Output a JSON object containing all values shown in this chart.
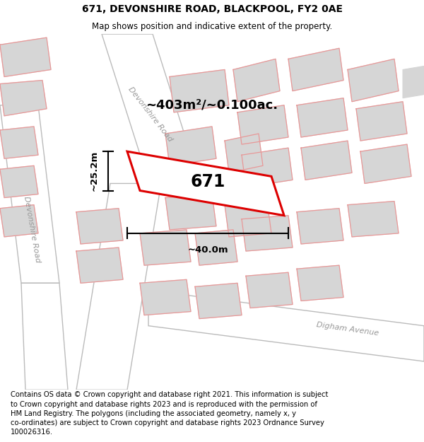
{
  "title": "671, DEVONSHIRE ROAD, BLACKPOOL, FY2 0AE",
  "subtitle": "Map shows position and indicative extent of the property.",
  "footer": "Contains OS data © Crown copyright and database right 2021. This information is subject\nto Crown copyright and database rights 2023 and is reproduced with the permission of\nHM Land Registry. The polygons (including the associated geometry, namely x, y\nco-ordinates) are subject to Crown copyright and database rights 2023 Ordnance Survey\n100026316.",
  "map_bg": "#f0f0f0",
  "building_fill": "#d6d6d6",
  "building_edge": "#d6d6d6",
  "road_fill": "#ffffff",
  "road_edge": "#bbbbbb",
  "highlight_color": "#dd0000",
  "pink_c": "#e89898",
  "annotation_color": "#000000",
  "area_text": "~403m²/~0.100ac.",
  "width_text": "~40.0m",
  "height_text": "~25.2m",
  "number_text": "671",
  "road1_label": "Devonshire Road",
  "road2_label": "Devonshire Road",
  "road3_label": "Digham Avenue",
  "title_fontsize": 10,
  "subtitle_fontsize": 8.5,
  "footer_fontsize": 7.2,
  "area_fontsize": 13,
  "number_fontsize": 17,
  "measure_fontsize": 9.5,
  "road_label_fontsize": 8
}
